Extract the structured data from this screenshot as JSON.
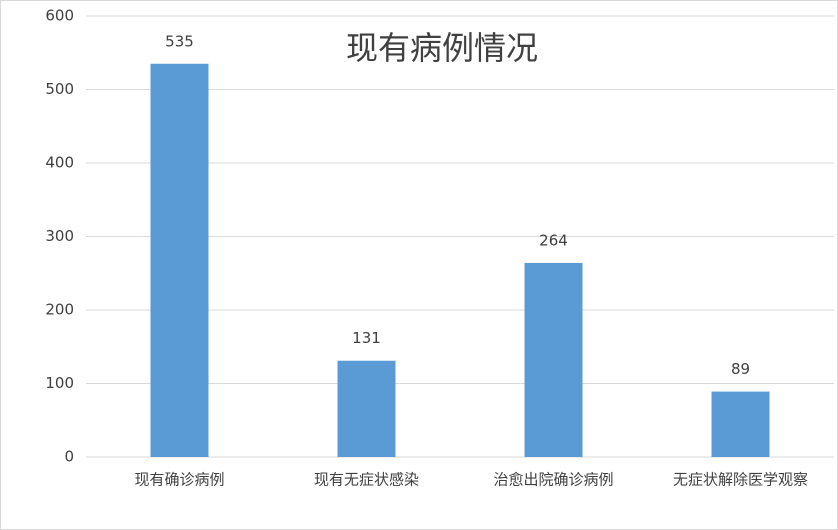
{
  "chart_data": {
    "type": "bar",
    "title": "现有病例情况",
    "categories": [
      "现有确诊病例",
      "现有无症状感染",
      "治愈出院确诊病例",
      "无症状解除医学观察"
    ],
    "values": [
      535,
      131,
      264,
      89
    ],
    "color": "#5b9bd5",
    "ylim": [
      0,
      600
    ],
    "yticks": [
      0,
      100,
      200,
      300,
      400,
      500,
      600
    ],
    "grid": true,
    "data_labels": true
  }
}
